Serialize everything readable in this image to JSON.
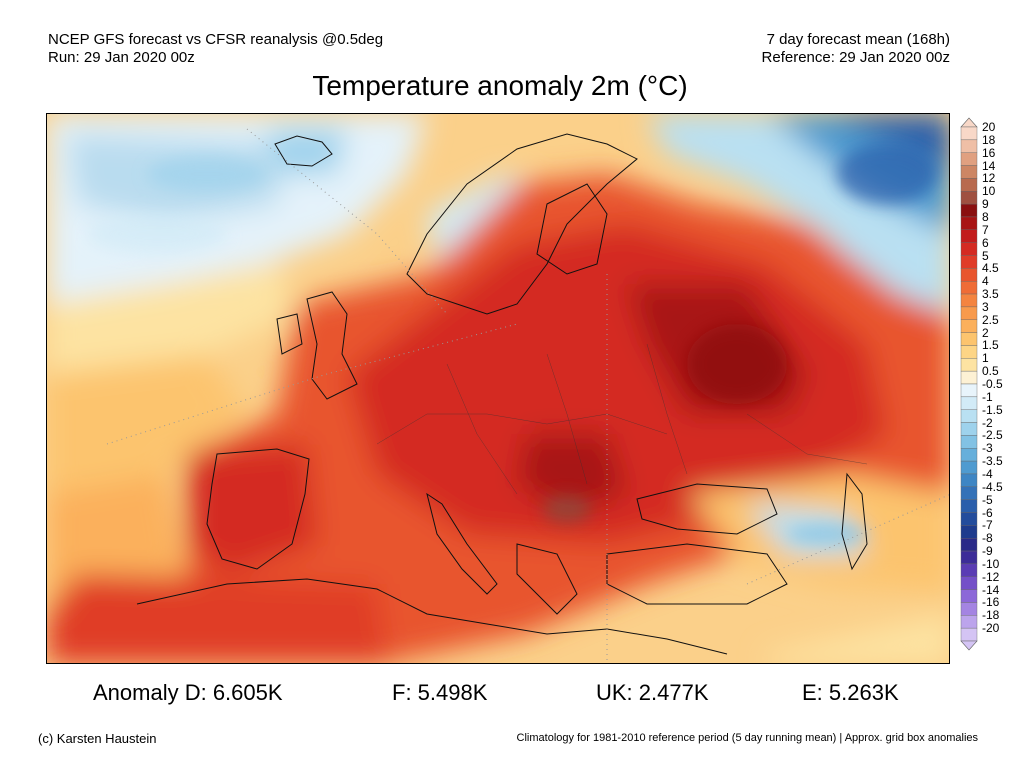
{
  "header": {
    "line1_left": "NCEP GFS forecast vs CFSR reanalysis @0.5deg",
    "line2_left": "Run: 29 Jan 2020 00z",
    "line1_right": "7 day forecast mean (168h)",
    "line2_right": "Reference: 29 Jan 2020 00z"
  },
  "title": "Temperature anomaly 2m (°C)",
  "colorbar": {
    "labels": [
      "20",
      "18",
      "16",
      "14",
      "12",
      "10",
      "9",
      "8",
      "7",
      "6",
      "5",
      "4.5",
      "4",
      "3.5",
      "3",
      "2.5",
      "2",
      "1.5",
      "1",
      "0.5",
      "-0.5",
      "-1",
      "-1.5",
      "-2",
      "-2.5",
      "-3",
      "-3.5",
      "-4",
      "-4.5",
      "-5",
      "-6",
      "-7",
      "-8",
      "-9",
      "-10",
      "-12",
      "-14",
      "-16",
      "-18",
      "-20"
    ],
    "colors": [
      "#f8d8c8",
      "#efbfa6",
      "#e0a080",
      "#cd8664",
      "#b86a4e",
      "#9f5040",
      "#8a1010",
      "#a81414",
      "#c21c1c",
      "#d42a22",
      "#e03c28",
      "#e8552e",
      "#ef6c36",
      "#f48440",
      "#f89a4c",
      "#fbb05c",
      "#fcc46e",
      "#fdd586",
      "#fde3a2",
      "#fdf1d4",
      "#e8f4fb",
      "#d2ebf7",
      "#b9e0f2",
      "#9ed2ec",
      "#82c2e4",
      "#66afdb",
      "#4f9bd0",
      "#3e86c4",
      "#3472b8",
      "#2a5eab",
      "#234c9c",
      "#1e3b8d",
      "#2a2a88",
      "#3c2c98",
      "#5a3cb4",
      "#7450c8",
      "#8c68d8",
      "#a484e2",
      "#bca4ec",
      "#d4c4f4"
    ]
  },
  "stats": [
    {
      "label": "Anomaly D: 6.605K"
    },
    {
      "label": "F: 5.498K"
    },
    {
      "label": "UK: 2.477K"
    },
    {
      "label": "E: 5.263K"
    }
  ],
  "footer": {
    "left": "(c) Karsten Haustein",
    "right": "Climatology for 1981-2010 reference period (5 day running mean) | Approx. grid box anomalies"
  }
}
